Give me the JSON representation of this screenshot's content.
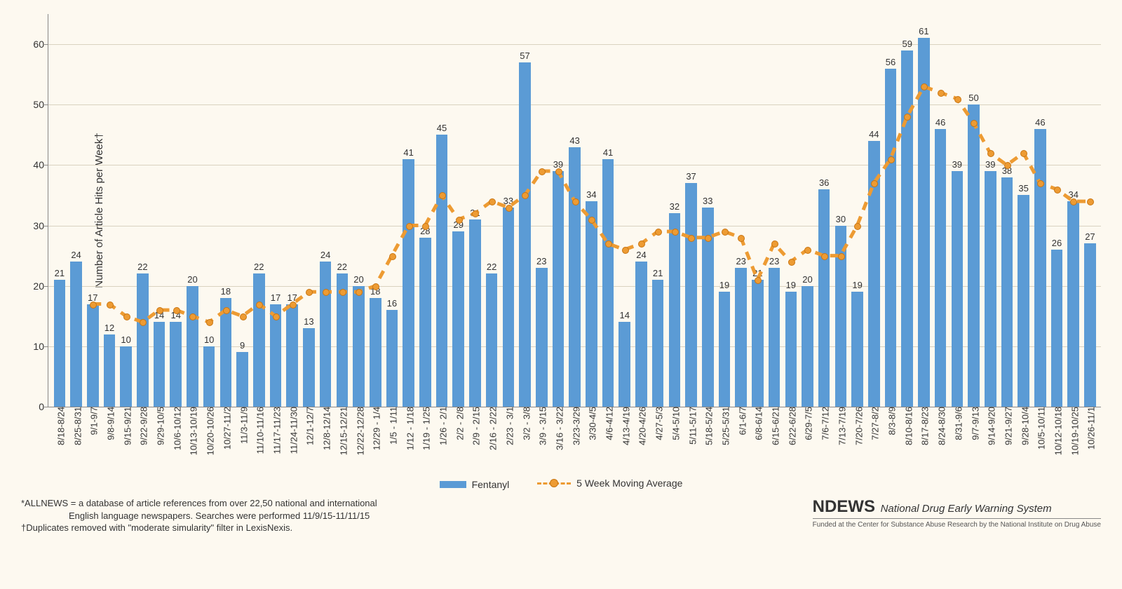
{
  "chart": {
    "type": "bar+line",
    "y_label": "Number of Article Hits per Week†",
    "label_fontsize": 15,
    "tick_fontsize": 14,
    "bar_label_fontsize": 13,
    "ymax": 65,
    "yticks": [
      0,
      10,
      20,
      30,
      40,
      50,
      60
    ],
    "bar_color": "#5b9bd5",
    "line_color": "#ed9b33",
    "line_width": 3,
    "marker": "circle",
    "marker_size": 8,
    "line_dash": "dashed",
    "grid_color": "#d9d2c0",
    "background_color": "#fdf9f0",
    "bar_width": 0.7,
    "categories": [
      "8/18-8/24",
      "8/25-8/31",
      "9/1-9/7",
      "9/8-9/14",
      "9/15-9/21",
      "9/22-9/28",
      "9/29-10/5",
      "10/6-10/12",
      "10/13-10/19",
      "10/20-10/26",
      "10/27-11/2",
      "11/3-11/9",
      "11/10-11/16",
      "11/17-11/23",
      "11/24-11/30",
      "12/1-12/7",
      "12/8-12/14",
      "12/15-12/21",
      "12/22-12/28",
      "12/29 - 1/4",
      "1/5 - 1/11",
      "1/12 - 1/18",
      "1/19 - 1/25",
      "1/26 - 2/1",
      "2/2 - 2/8",
      "2/9 - 2/15",
      "2/16 - 2/22",
      "2/23 - 3/1",
      "3/2 - 3/8",
      "3/9 - 3/15",
      "3/16 - 3/22",
      "3/23-3/29",
      "3/30-4/5",
      "4/6-4/12",
      "4/13-4/19",
      "4/20-4/26",
      "4/27-5/3",
      "5/4-5/10",
      "5/11-5/17",
      "5/18-5/24",
      "5/25-5/31",
      "6/1-6/7",
      "6/8-6/14",
      "6/15-6/21",
      "6/22-6/28",
      "6/29-7/5",
      "7/6-7/12",
      "7/13-7/19",
      "7/20-7/26",
      "7/27-8/2",
      "8/3-8/9",
      "8/10-8/16",
      "8/17-8/23",
      "8/24-8/30",
      "8/31-9/6",
      "9/7-9/13",
      "9/14-9/20",
      "9/21-9/27",
      "9/28-10/4",
      "10/5-10/11",
      "10/12-10/18",
      "10/19-10/25",
      "10/26-11/1"
    ],
    "bar_values": [
      21,
      24,
      17,
      12,
      10,
      22,
      14,
      14,
      20,
      10,
      18,
      9,
      22,
      17,
      17,
      13,
      24,
      22,
      20,
      18,
      16,
      41,
      28,
      45,
      29,
      31,
      22,
      33,
      57,
      23,
      39,
      43,
      34,
      41,
      14,
      24,
      21,
      32,
      37,
      33,
      19,
      23,
      21,
      23,
      19,
      20,
      36,
      30,
      19,
      44,
      56,
      59,
      61,
      46,
      39,
      50,
      39,
      38,
      35,
      46,
      26,
      34,
      27
    ],
    "line_values": [
      null,
      null,
      17,
      17,
      15,
      14,
      16,
      16,
      15,
      14,
      16,
      15,
      17,
      15,
      17,
      19,
      19,
      19,
      19,
      20,
      25,
      30,
      30,
      35,
      31,
      32,
      34,
      33,
      35,
      39,
      39,
      34,
      31,
      27,
      26,
      27,
      29,
      29,
      28,
      28,
      29,
      28,
      21,
      27,
      24,
      26,
      25,
      25,
      30,
      37,
      41,
      48,
      53,
      52,
      51,
      47,
      42,
      40,
      42,
      37,
      36,
      34,
      34
    ],
    "legend": {
      "bar_label": "Fentanyl",
      "line_label": "5 Week Moving Average"
    }
  },
  "footnotes": {
    "line1": "*ALLNEWS = a database of article references from over 22,50 national and international",
    "line2": "English language newspapers. Searches were performed 11/9/15-11/11/15",
    "line3": "†Duplicates removed with \"moderate simularity\" filter in LexisNexis."
  },
  "brand": {
    "name": "NDEWS",
    "subtitle": "National Drug Early Warning System",
    "small": "Funded at the Center for Substance Abuse Research by the National Institute on Drug Abuse"
  }
}
